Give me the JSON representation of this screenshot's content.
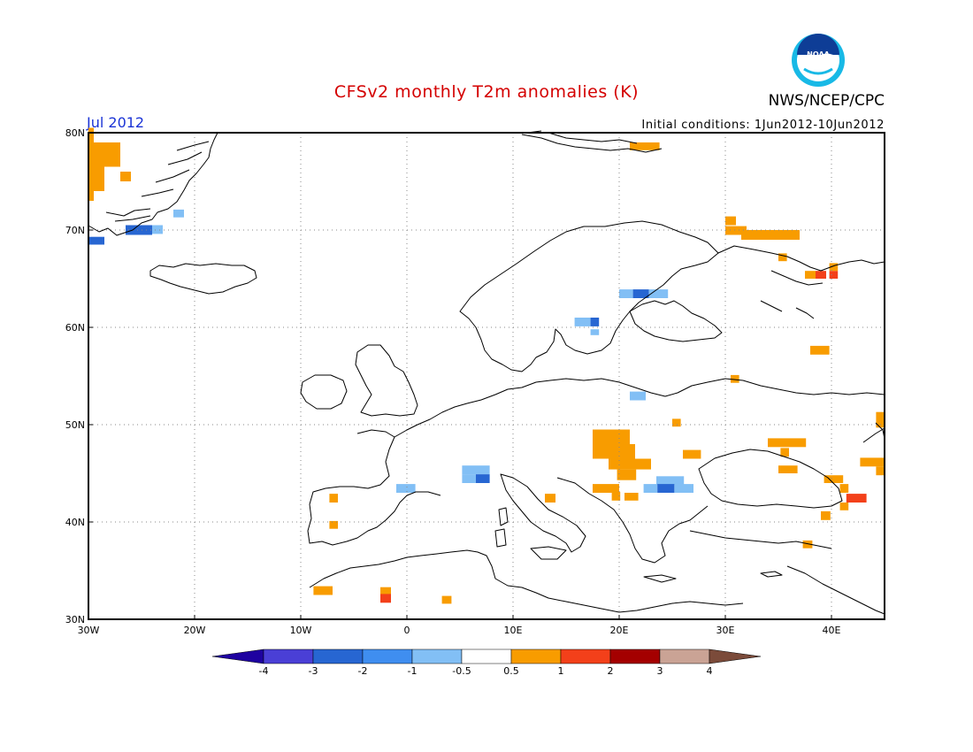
{
  "title": "CFSv2 monthly T2m anomalies (K)",
  "month_label": "Jul 2012",
  "initial_conditions": "Initial conditions: 1Jun2012-10Jun2012",
  "agency": "NWS/NCEP/CPC",
  "logo_text": "NOAA",
  "lat_labels": [
    "80N",
    "70N",
    "60N",
    "50N",
    "40N",
    "30N"
  ],
  "lon_labels": [
    "30W",
    "20W",
    "10W",
    "0",
    "10E",
    "20E",
    "30E",
    "40E"
  ],
  "map_extent": {
    "lon": [
      -30,
      45
    ],
    "lat": [
      30,
      80
    ]
  },
  "colorbar": {
    "labels": [
      "-4",
      "-3",
      "-2",
      "-1",
      "-0.5",
      "0.5",
      "1",
      "2",
      "3",
      "4"
    ],
    "colors": [
      "#1e02a0",
      "#4a3fd6",
      "#2766d2",
      "#3f8ef0",
      "#82bff5",
      "#ffffff",
      "#f89c00",
      "#f3401a",
      "#a40000",
      "#caa395",
      "#7b4b3a"
    ]
  },
  "anomaly_cells": [
    {
      "lon": -30,
      "lat": 76.5,
      "w": 3,
      "h": 2.5,
      "level": 1
    },
    {
      "lon": -30,
      "lat": 74,
      "w": 1.5,
      "h": 2.5,
      "level": 1
    },
    {
      "lon": -30,
      "lat": 73,
      "w": 0.5,
      "h": 1,
      "level": 1
    },
    {
      "lon": -30,
      "lat": 78.5,
      "w": 0.5,
      "h": 2,
      "level": 1
    },
    {
      "lon": -27,
      "lat": 75,
      "w": 1,
      "h": 1,
      "level": 1
    },
    {
      "lon": -30,
      "lat": 68.5,
      "w": 1.5,
      "h": 0.8,
      "level": -2
    },
    {
      "lon": -26.5,
      "lat": 69.5,
      "w": 2.5,
      "h": 1,
      "level": -2
    },
    {
      "lon": -24,
      "lat": 69.6,
      "w": 1,
      "h": 0.9,
      "level": -1
    },
    {
      "lon": -22,
      "lat": 71.3,
      "w": 1,
      "h": 0.8,
      "level": -1
    },
    {
      "lon": 21,
      "lat": 78.2,
      "w": 2.8,
      "h": 0.8,
      "level": 1
    },
    {
      "lon": 30,
      "lat": 70.5,
      "w": 1,
      "h": 0.9,
      "level": 1
    },
    {
      "lon": 30,
      "lat": 69.5,
      "w": 2,
      "h": 0.9,
      "level": 1
    },
    {
      "lon": 31.5,
      "lat": 69,
      "w": 5.5,
      "h": 1,
      "level": 1
    },
    {
      "lon": 35,
      "lat": 66.8,
      "w": 0.8,
      "h": 0.8,
      "level": 1
    },
    {
      "lon": 37.5,
      "lat": 65,
      "w": 1,
      "h": 0.8,
      "level": 1
    },
    {
      "lon": 38.5,
      "lat": 65,
      "w": 1,
      "h": 0.8,
      "level": 2
    },
    {
      "lon": 39.8,
      "lat": 65,
      "w": 0.8,
      "h": 0.8,
      "level": 2
    },
    {
      "lon": 39.8,
      "lat": 65.8,
      "w": 0.8,
      "h": 0.8,
      "level": 1
    },
    {
      "lon": 38,
      "lat": 57.2,
      "w": 1.8,
      "h": 0.9,
      "level": 1
    },
    {
      "lon": 30.5,
      "lat": 54.3,
      "w": 0.8,
      "h": 0.8,
      "level": 1
    },
    {
      "lon": 20,
      "lat": 63,
      "w": 1.3,
      "h": 0.9,
      "level": -1
    },
    {
      "lon": 21.3,
      "lat": 63,
      "w": 1.5,
      "h": 0.9,
      "level": -2
    },
    {
      "lon": 22.8,
      "lat": 63,
      "w": 1.8,
      "h": 0.9,
      "level": -1
    },
    {
      "lon": 15.8,
      "lat": 60.1,
      "w": 1.5,
      "h": 0.9,
      "level": -1
    },
    {
      "lon": 17.3,
      "lat": 60.1,
      "w": 0.8,
      "h": 0.9,
      "level": -2
    },
    {
      "lon": 17.3,
      "lat": 59.2,
      "w": 0.8,
      "h": 0.6,
      "level": -1
    },
    {
      "lon": 21,
      "lat": 52.5,
      "w": 1.5,
      "h": 0.9,
      "level": -1
    },
    {
      "lon": 25,
      "lat": 49.8,
      "w": 0.8,
      "h": 0.8,
      "level": 1
    },
    {
      "lon": 17.5,
      "lat": 48,
      "w": 3.5,
      "h": 1.5,
      "level": 1
    },
    {
      "lon": 17.5,
      "lat": 46.5,
      "w": 4,
      "h": 1.5,
      "level": 1
    },
    {
      "lon": 19,
      "lat": 45.4,
      "w": 4,
      "h": 1.1,
      "level": 1
    },
    {
      "lon": 19.8,
      "lat": 44.3,
      "w": 1.8,
      "h": 1.1,
      "level": 1
    },
    {
      "lon": 17.5,
      "lat": 43,
      "w": 2.5,
      "h": 0.9,
      "level": 1
    },
    {
      "lon": 19.3,
      "lat": 42.2,
      "w": 0.8,
      "h": 0.9,
      "level": 1
    },
    {
      "lon": 20.5,
      "lat": 42.2,
      "w": 1.3,
      "h": 0.8,
      "level": 1
    },
    {
      "lon": 23.5,
      "lat": 43.8,
      "w": 2.6,
      "h": 0.9,
      "level": -1
    },
    {
      "lon": 22.3,
      "lat": 43,
      "w": 1.3,
      "h": 0.9,
      "level": -1
    },
    {
      "lon": 23.6,
      "lat": 43,
      "w": 1.6,
      "h": 0.9,
      "level": -2
    },
    {
      "lon": 25.2,
      "lat": 43,
      "w": 1.8,
      "h": 0.9,
      "level": -1
    },
    {
      "lon": 26,
      "lat": 46.5,
      "w": 1.7,
      "h": 0.9,
      "level": 1
    },
    {
      "lon": 34,
      "lat": 47.7,
      "w": 3.6,
      "h": 0.9,
      "level": 1
    },
    {
      "lon": 35.2,
      "lat": 46.7,
      "w": 0.8,
      "h": 0.9,
      "level": 1
    },
    {
      "lon": 35,
      "lat": 45,
      "w": 1.8,
      "h": 0.8,
      "level": 1
    },
    {
      "lon": 39.3,
      "lat": 44,
      "w": 1.8,
      "h": 0.8,
      "level": 1
    },
    {
      "lon": 40.8,
      "lat": 43,
      "w": 0.8,
      "h": 0.9,
      "level": 1
    },
    {
      "lon": 41.4,
      "lat": 42,
      "w": 1.9,
      "h": 0.9,
      "level": 2
    },
    {
      "lon": 40.8,
      "lat": 41.2,
      "w": 0.8,
      "h": 0.8,
      "level": 1
    },
    {
      "lon": 39,
      "lat": 40.2,
      "w": 0.9,
      "h": 0.9,
      "level": 1
    },
    {
      "lon": 42.7,
      "lat": 45.7,
      "w": 2.3,
      "h": 0.9,
      "level": 1
    },
    {
      "lon": 44.2,
      "lat": 44.8,
      "w": 0.8,
      "h": 0.9,
      "level": 1
    },
    {
      "lon": 44.2,
      "lat": 49.7,
      "w": 0.8,
      "h": 1.6,
      "level": 1
    },
    {
      "lon": 37.3,
      "lat": 37.3,
      "w": 0.9,
      "h": 0.8,
      "level": 1
    },
    {
      "lon": -1,
      "lat": 43,
      "w": 1.8,
      "h": 0.9,
      "level": -1
    },
    {
      "lon": 5.2,
      "lat": 44.9,
      "w": 2.6,
      "h": 0.9,
      "level": -1
    },
    {
      "lon": 5.2,
      "lat": 44,
      "w": 1.3,
      "h": 0.9,
      "level": -1
    },
    {
      "lon": 6.5,
      "lat": 44,
      "w": 1.3,
      "h": 0.9,
      "level": -2
    },
    {
      "lon": 13,
      "lat": 42,
      "w": 1,
      "h": 0.9,
      "level": 1
    },
    {
      "lon": -7.3,
      "lat": 42,
      "w": 0.8,
      "h": 0.9,
      "level": 1
    },
    {
      "lon": -7.3,
      "lat": 39.3,
      "w": 0.8,
      "h": 0.8,
      "level": 1
    },
    {
      "lon": -8.8,
      "lat": 32.5,
      "w": 1.8,
      "h": 0.9,
      "level": 1
    },
    {
      "lon": -2.5,
      "lat": 32.5,
      "w": 1,
      "h": 0.8,
      "level": 1
    },
    {
      "lon": -2.5,
      "lat": 31.7,
      "w": 1,
      "h": 0.9,
      "level": 2
    },
    {
      "lon": 3.3,
      "lat": 31.6,
      "w": 0.9,
      "h": 0.8,
      "level": 1
    }
  ]
}
